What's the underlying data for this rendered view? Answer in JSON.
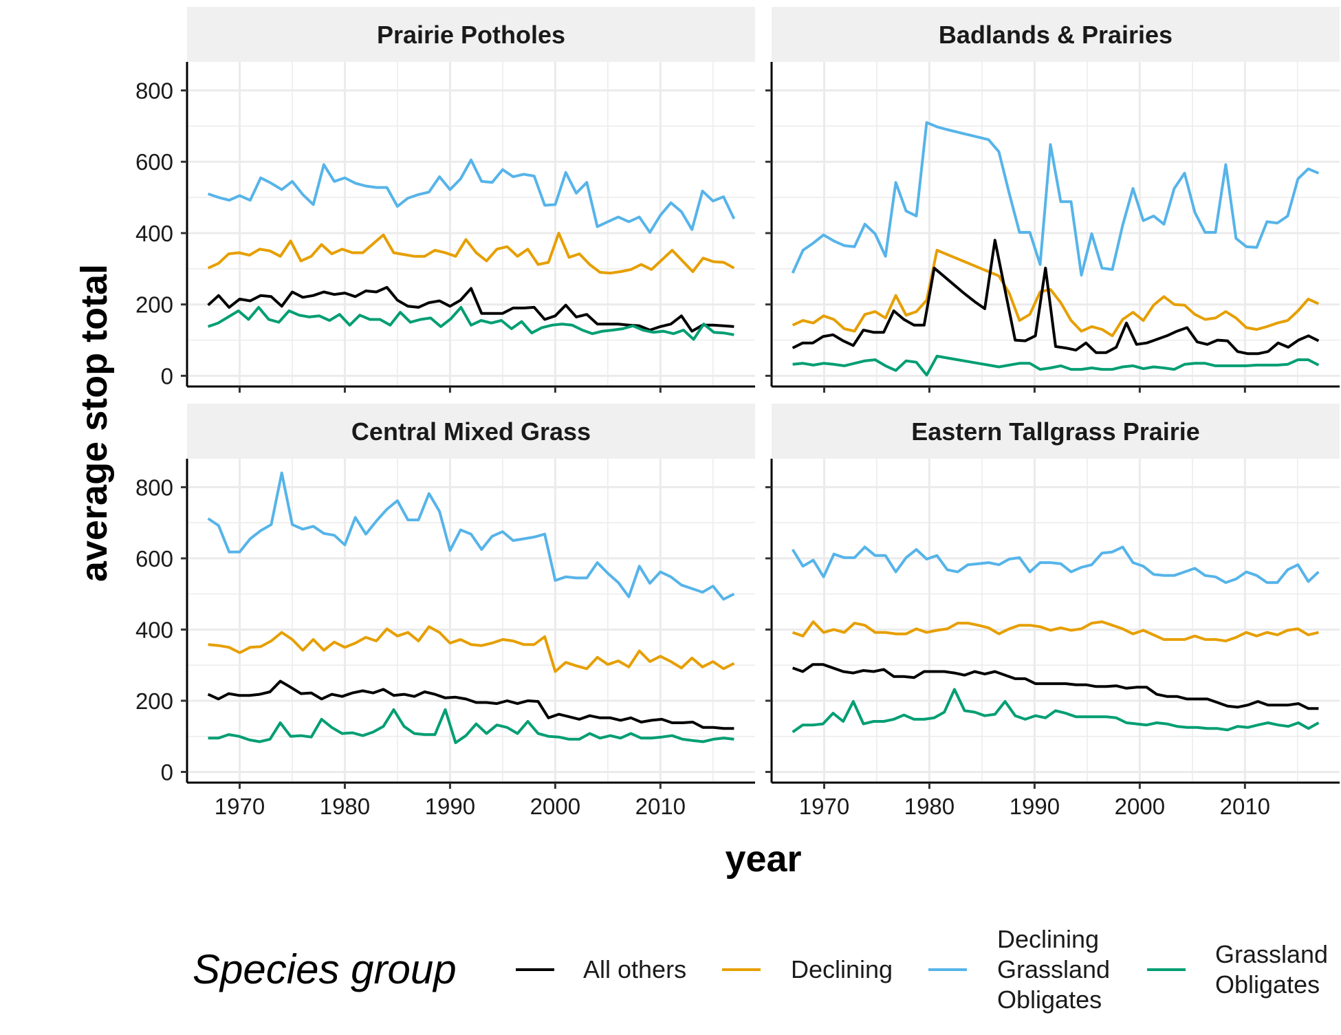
{
  "colors": {
    "all_others": "#000000",
    "declining": "#E69F00",
    "declining_grassland_obligates": "#56B4E9",
    "grassland_obligates": "#009E73",
    "strip_background": "#f0f0f0",
    "grid": "#ebebeb"
  },
  "chart_data": {
    "type": "line",
    "xlabel": "year",
    "ylabel": "average stop total",
    "xlim": [
      1965,
      2019
    ],
    "ylim": [
      -30,
      880
    ],
    "x_ticks": [
      1970,
      1980,
      1990,
      2000,
      2010
    ],
    "y_ticks": [
      0,
      200,
      400,
      600,
      800
    ],
    "grid": true,
    "legend": {
      "title": "Species group",
      "position": "bottom",
      "entries": [
        {
          "key": "all_others",
          "lines": [
            "All others"
          ]
        },
        {
          "key": "declining",
          "lines": [
            "Declining"
          ]
        },
        {
          "key": "declining_grassland_obligates",
          "lines": [
            "Declining",
            "Grassland",
            "Obligates"
          ]
        },
        {
          "key": "grassland_obligates",
          "lines": [
            "Grassland",
            "Obligates"
          ]
        }
      ]
    },
    "panels": [
      {
        "title": "Prairie Potholes",
        "start_year": 1967,
        "series": [
          {
            "key": "declining_grassland_obligates",
            "values": [
              510,
              500,
              492,
              505,
              492,
              555,
              540,
              522,
              545,
              508,
              480,
              592,
              545,
              555,
              540,
              532,
              528,
              528,
              475,
              498,
              508,
              515,
              558,
              522,
              552,
              605,
              545,
              542,
              578,
              558,
              565,
              560,
              478,
              480,
              570,
              512,
              542,
              418,
              432,
              445,
              432,
              445,
              402,
              450,
              485,
              460,
              410,
              518,
              490,
              502,
              440
            ]
          },
          {
            "key": "declining",
            "values": [
              302,
              315,
              342,
              345,
              338,
              355,
              350,
              335,
              378,
              322,
              335,
              368,
              342,
              355,
              345,
              345,
              370,
              395,
              345,
              340,
              335,
              335,
              352,
              345,
              335,
              382,
              345,
              322,
              355,
              362,
              335,
              355,
              312,
              318,
              400,
              332,
              342,
              312,
              290,
              288,
              292,
              298,
              312,
              298,
              325,
              352,
              322,
              292,
              330,
              320,
              318,
              302
            ]
          },
          {
            "key": "all_others",
            "values": [
              198,
              225,
              192,
              215,
              210,
              225,
              222,
              195,
              235,
              220,
              225,
              235,
              228,
              232,
              222,
              238,
              235,
              248,
              212,
              195,
              192,
              205,
              210,
              195,
              212,
              245,
              175,
              175,
              175,
              190,
              190,
              192,
              158,
              168,
              198,
              165,
              172,
              145,
              145,
              145,
              142,
              140,
              128,
              138,
              145,
              168,
              125,
              142,
              142,
              140,
              138
            ]
          },
          {
            "key": "grassland_obligates",
            "values": [
              138,
              148,
              165,
              182,
              158,
              192,
              158,
              150,
              182,
              170,
              165,
              168,
              155,
              172,
              142,
              170,
              158,
              158,
              142,
              178,
              150,
              158,
              162,
              138,
              160,
              192,
              142,
              155,
              148,
              155,
              132,
              152,
              120,
              135,
              142,
              145,
              142,
              128,
              118,
              125,
              128,
              132,
              140,
              128,
              122,
              125,
              118,
              128,
              102,
              145,
              122,
              120,
              115
            ]
          }
        ]
      },
      {
        "title": "Badlands & Prairies",
        "start_year": 1967,
        "series": [
          {
            "key": "declining_grassland_obligates",
            "values": [
              288,
              352,
              372,
              395,
              378,
              365,
              362,
              425,
              398,
              335,
              542,
              462,
              448,
              710,
              698,
              690,
              683,
              676,
              669,
              662,
              628,
              512,
              402,
              402,
              312,
              648,
              488,
              488,
              282,
              398,
              302,
              298,
              422,
              525,
              435,
              448,
              425,
              525,
              568,
              458,
              402,
              402,
              592,
              385,
              362,
              360,
              432,
              428,
              448,
              552,
              580,
              568
            ]
          },
          {
            "key": "declining",
            "values": [
              142,
              155,
              148,
              168,
              158,
              132,
              125,
              172,
              180,
              162,
              225,
              170,
              180,
              212,
              352,
              340,
              328,
              316,
              304,
              292,
              280,
              232,
              155,
              172,
              235,
              242,
              205,
              155,
              125,
              138,
              130,
              112,
              158,
              178,
              155,
              198,
              222,
              200,
              198,
              172,
              158,
              162,
              180,
              162,
              135,
              130,
              138,
              148,
              155,
              182,
              215,
              202
            ]
          },
          {
            "key": "all_others",
            "values": [
              78,
              92,
              92,
              110,
              115,
              98,
              85,
              128,
              122,
              122,
              182,
              158,
              142,
              142,
              302,
              278,
              254,
              230,
              208,
              188,
              380,
              240,
              100,
              98,
              112,
              302,
              82,
              78,
              72,
              92,
              65,
              65,
              80,
              148,
              88,
              92,
              102,
              112,
              125,
              135,
              95,
              88,
              100,
              98,
              68,
              62,
              62,
              68,
              92,
              80,
              100,
              112,
              98
            ]
          },
          {
            "key": "grassland_obligates",
            "values": [
              32,
              35,
              30,
              35,
              32,
              28,
              35,
              42,
              45,
              28,
              15,
              42,
              38,
              2,
              55,
              50,
              45,
              40,
              35,
              30,
              25,
              30,
              35,
              35,
              18,
              22,
              28,
              18,
              18,
              22,
              18,
              18,
              25,
              28,
              20,
              25,
              22,
              18,
              32,
              35,
              35,
              28,
              28,
              28,
              28,
              30,
              30,
              30,
              32,
              45,
              45,
              30
            ]
          }
        ]
      },
      {
        "title": "Central Mixed Grass",
        "start_year": 1967,
        "series": [
          {
            "key": "declining_grassland_obligates",
            "values": [
              712,
              692,
              618,
              618,
              655,
              678,
              695,
              840,
              695,
              682,
              690,
              670,
              665,
              638,
              715,
              668,
              705,
              738,
              762,
              708,
              708,
              782,
              732,
              622,
              680,
              668,
              625,
              662,
              675,
              650,
              655,
              660,
              668,
              538,
              548,
              545,
              545,
              588,
              558,
              532,
              492,
              578,
              530,
              562,
              548,
              525,
              515,
              505,
              522,
              485,
              500
            ]
          },
          {
            "key": "declining",
            "values": [
              358,
              355,
              350,
              335,
              350,
              352,
              368,
              392,
              372,
              342,
              372,
              342,
              365,
              350,
              362,
              378,
              368,
              402,
              382,
              392,
              368,
              408,
              392,
              362,
              372,
              358,
              355,
              362,
              372,
              368,
              358,
              358,
              380,
              282,
              308,
              298,
              290,
              322,
              302,
              312,
              295,
              340,
              310,
              325,
              310,
              292,
              320,
              295,
              310,
              290,
              305
            ]
          },
          {
            "key": "all_others",
            "values": [
              218,
              205,
              220,
              215,
              215,
              218,
              225,
              255,
              238,
              220,
              222,
              205,
              218,
              212,
              222,
              228,
              222,
              232,
              215,
              218,
              212,
              225,
              218,
              208,
              210,
              205,
              195,
              195,
              192,
              200,
              192,
              200,
              198,
              152,
              162,
              155,
              148,
              158,
              152,
              152,
              145,
              152,
              140,
              145,
              148,
              138,
              138,
              140,
              125,
              125,
              122,
              122
            ]
          },
          {
            "key": "grassland_obligates",
            "values": [
              95,
              95,
              105,
              100,
              90,
              85,
              92,
              138,
              100,
              102,
              98,
              148,
              125,
              108,
              110,
              102,
              112,
              128,
              175,
              128,
              108,
              105,
              105,
              175,
              82,
              102,
              135,
              108,
              132,
              125,
              108,
              142,
              108,
              100,
              98,
              92,
              92,
              108,
              95,
              102,
              95,
              108,
              95,
              95,
              98,
              102,
              92,
              88,
              85,
              92,
              95,
              92
            ]
          }
        ]
      },
      {
        "title": "Eastern Tallgrass Prairie",
        "start_year": 1967,
        "series": [
          {
            "key": "declining_grassland_obligates",
            "values": [
              625,
              578,
              595,
              548,
              612,
              602,
              602,
              632,
              608,
              608,
              562,
              602,
              625,
              598,
              608,
              568,
              562,
              582,
              585,
              588,
              582,
              598,
              602,
              562,
              588,
              588,
              585,
              562,
              575,
              582,
              615,
              618,
              632,
              588,
              578,
              555,
              552,
              552,
              562,
              572,
              552,
              548,
              532,
              542,
              562,
              552,
              532,
              532,
              568,
              582,
              535,
              562
            ]
          },
          {
            "key": "declining",
            "values": [
              392,
              382,
              422,
              392,
              400,
              392,
              418,
              412,
              392,
              392,
              388,
              388,
              402,
              392,
              398,
              402,
              418,
              418,
              412,
              405,
              388,
              402,
              412,
              412,
              408,
              398,
              405,
              398,
              402,
              418,
              422,
              412,
              402,
              388,
              398,
              385,
              372,
              372,
              372,
              382,
              372,
              372,
              368,
              378,
              392,
              382,
              392,
              385,
              398,
              402,
              385,
              392
            ]
          },
          {
            "key": "all_others",
            "values": [
              292,
              282,
              302,
              302,
              292,
              282,
              278,
              285,
              282,
              288,
              268,
              268,
              265,
              282,
              282,
              282,
              278,
              272,
              282,
              275,
              282,
              272,
              262,
              262,
              248,
              248,
              248,
              248,
              245,
              245,
              240,
              240,
              242,
              235,
              238,
              238,
              218,
              212,
              212,
              205,
              205,
              205,
              195,
              185,
              182,
              188,
              198,
              188,
              188,
              188,
              192,
              178,
              178
            ]
          },
          {
            "key": "grassland_obligates",
            "values": [
              112,
              132,
              132,
              135,
              165,
              142,
              198,
              135,
              142,
              142,
              148,
              160,
              148,
              148,
              152,
              168,
              232,
              172,
              168,
              158,
              162,
              198,
              158,
              148,
              158,
              152,
              172,
              165,
              155,
              155,
              155,
              155,
              152,
              138,
              135,
              132,
              138,
              135,
              128,
              125,
              125,
              122,
              122,
              118,
              128,
              125,
              132,
              138,
              132,
              128,
              138,
              122,
              138
            ]
          }
        ]
      }
    ]
  }
}
